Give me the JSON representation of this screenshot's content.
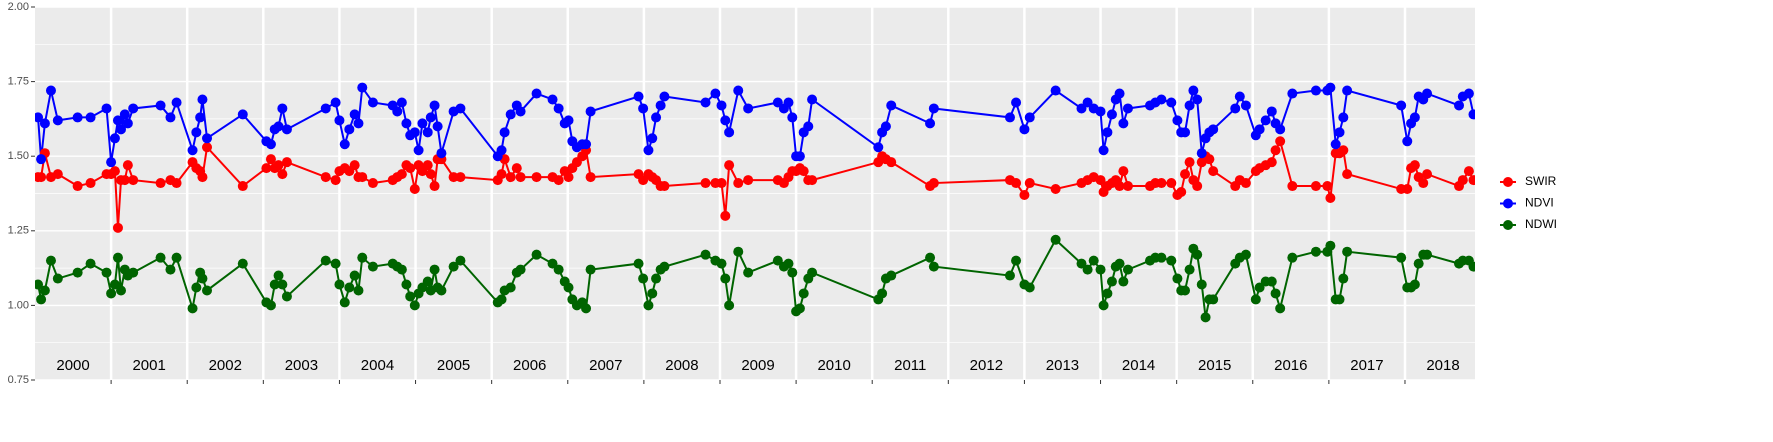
{
  "chart_data": {
    "type": "line",
    "x": [
      2000.04,
      2000.08,
      2000.13,
      2000.21,
      2000.3,
      2000.56,
      2000.73,
      2000.94,
      2001.0,
      2001.05,
      2001.09,
      2001.13,
      2001.18,
      2001.22,
      2001.29,
      2001.65,
      2001.78,
      2001.86,
      2002.07,
      2002.12,
      2002.17,
      2002.2,
      2002.26,
      2002.73,
      2003.04,
      2003.1,
      2003.15,
      2003.2,
      2003.25,
      2003.31,
      2003.82,
      2003.95,
      2004.0,
      2004.07,
      2004.13,
      2004.2,
      2004.25,
      2004.3,
      2004.44,
      2004.7,
      2004.76,
      2004.82,
      2004.88,
      2004.93,
      2004.99,
      2005.04,
      2005.09,
      2005.16,
      2005.2,
      2005.25,
      2005.29,
      2005.34,
      2005.5,
      2005.59,
      2006.08,
      2006.13,
      2006.17,
      2006.25,
      2006.33,
      2006.38,
      2006.59,
      2006.8,
      2006.88,
      2006.96,
      2007.01,
      2007.06,
      2007.12,
      2007.19,
      2007.24,
      2007.3,
      2007.93,
      2007.99,
      2008.06,
      2008.11,
      2008.16,
      2008.22,
      2008.27,
      2008.81,
      2008.94,
      2009.02,
      2009.07,
      2009.12,
      2009.24,
      2009.37,
      2009.76,
      2009.84,
      2009.9,
      2009.95,
      2010.0,
      2010.05,
      2010.1,
      2010.16,
      2010.21,
      2011.08,
      2011.13,
      2011.18,
      2011.25,
      2011.76,
      2011.81,
      2012.81,
      2012.89,
      2013.0,
      2013.07,
      2013.41,
      2013.75,
      2013.83,
      2013.91,
      2014.0,
      2014.04,
      2014.09,
      2014.15,
      2014.2,
      2014.25,
      2014.3,
      2014.36,
      2014.65,
      2014.72,
      2014.8,
      2014.93,
      2015.01,
      2015.06,
      2015.11,
      2015.17,
      2015.22,
      2015.27,
      2015.33,
      2015.38,
      2015.43,
      2015.48,
      2015.77,
      2015.83,
      2015.91,
      2016.04,
      2016.09,
      2016.17,
      2016.25,
      2016.3,
      2016.36,
      2016.52,
      2016.83,
      2016.98,
      2017.02,
      2017.09,
      2017.14,
      2017.19,
      2017.24,
      2017.95,
      2018.03,
      2018.08,
      2018.13,
      2018.18,
      2018.24,
      2018.29,
      2018.71,
      2018.76,
      2018.84,
      2018.9
    ],
    "series": [
      {
        "name": "SWIR",
        "color": "#ff0000",
        "values": [
          1.43,
          1.43,
          1.51,
          1.43,
          1.44,
          1.4,
          1.41,
          1.44,
          1.44,
          1.45,
          1.26,
          1.42,
          1.42,
          1.47,
          1.42,
          1.41,
          1.42,
          1.41,
          1.48,
          1.46,
          1.45,
          1.43,
          1.53,
          1.4,
          1.46,
          1.49,
          1.46,
          1.47,
          1.44,
          1.48,
          1.43,
          1.42,
          1.45,
          1.46,
          1.45,
          1.47,
          1.43,
          1.43,
          1.41,
          1.42,
          1.43,
          1.44,
          1.47,
          1.46,
          1.39,
          1.47,
          1.45,
          1.47,
          1.44,
          1.4,
          1.49,
          1.49,
          1.43,
          1.43,
          1.42,
          1.44,
          1.49,
          1.43,
          1.46,
          1.43,
          1.43,
          1.43,
          1.42,
          1.45,
          1.43,
          1.46,
          1.48,
          1.5,
          1.52,
          1.43,
          1.44,
          1.42,
          1.44,
          1.43,
          1.42,
          1.4,
          1.4,
          1.41,
          1.41,
          1.41,
          1.3,
          1.47,
          1.41,
          1.42,
          1.42,
          1.41,
          1.43,
          1.45,
          1.45,
          1.46,
          1.45,
          1.42,
          1.42,
          1.48,
          1.5,
          1.49,
          1.48,
          1.4,
          1.41,
          1.42,
          1.41,
          1.37,
          1.41,
          1.39,
          1.41,
          1.42,
          1.43,
          1.42,
          1.38,
          1.4,
          1.41,
          1.42,
          1.4,
          1.45,
          1.4,
          1.4,
          1.41,
          1.41,
          1.41,
          1.37,
          1.38,
          1.44,
          1.48,
          1.42,
          1.4,
          1.48,
          1.5,
          1.49,
          1.45,
          1.4,
          1.42,
          1.41,
          1.45,
          1.46,
          1.47,
          1.48,
          1.52,
          1.55,
          1.4,
          1.4,
          1.4,
          1.36,
          1.51,
          1.51,
          1.52,
          1.44,
          1.39,
          1.39,
          1.46,
          1.47,
          1.43,
          1.41,
          1.44,
          1.4,
          1.42,
          1.45,
          1.42
        ]
      },
      {
        "name": "NDVI",
        "color": "#0000ff",
        "values": [
          1.63,
          1.49,
          1.61,
          1.72,
          1.62,
          1.63,
          1.63,
          1.66,
          1.48,
          1.56,
          1.62,
          1.59,
          1.64,
          1.61,
          1.66,
          1.67,
          1.63,
          1.68,
          1.52,
          1.58,
          1.63,
          1.69,
          1.56,
          1.64,
          1.55,
          1.54,
          1.59,
          1.6,
          1.66,
          1.59,
          1.66,
          1.68,
          1.62,
          1.54,
          1.59,
          1.64,
          1.61,
          1.73,
          1.68,
          1.67,
          1.65,
          1.68,
          1.61,
          1.57,
          1.58,
          1.52,
          1.61,
          1.58,
          1.63,
          1.67,
          1.6,
          1.51,
          1.65,
          1.66,
          1.5,
          1.52,
          1.58,
          1.64,
          1.67,
          1.65,
          1.71,
          1.69,
          1.66,
          1.61,
          1.62,
          1.55,
          1.53,
          1.54,
          1.54,
          1.65,
          1.7,
          1.66,
          1.52,
          1.56,
          1.63,
          1.67,
          1.7,
          1.68,
          1.71,
          1.67,
          1.62,
          1.58,
          1.72,
          1.66,
          1.68,
          1.66,
          1.68,
          1.63,
          1.5,
          1.5,
          1.58,
          1.6,
          1.69,
          1.53,
          1.58,
          1.6,
          1.67,
          1.61,
          1.66,
          1.63,
          1.68,
          1.59,
          1.63,
          1.72,
          1.66,
          1.68,
          1.66,
          1.65,
          1.52,
          1.58,
          1.64,
          1.69,
          1.71,
          1.61,
          1.66,
          1.67,
          1.68,
          1.69,
          1.68,
          1.62,
          1.58,
          1.58,
          1.67,
          1.72,
          1.69,
          1.51,
          1.56,
          1.58,
          1.59,
          1.66,
          1.7,
          1.67,
          1.57,
          1.59,
          1.62,
          1.65,
          1.61,
          1.59,
          1.71,
          1.72,
          1.72,
          1.73,
          1.54,
          1.58,
          1.63,
          1.72,
          1.67,
          1.55,
          1.61,
          1.63,
          1.7,
          1.69,
          1.71,
          1.67,
          1.7,
          1.71,
          1.64
        ]
      },
      {
        "name": "NDWI",
        "color": "#006400",
        "values": [
          1.07,
          1.02,
          1.05,
          1.15,
          1.09,
          1.11,
          1.14,
          1.11,
          1.04,
          1.07,
          1.16,
          1.05,
          1.12,
          1.1,
          1.11,
          1.16,
          1.12,
          1.16,
          0.99,
          1.06,
          1.11,
          1.09,
          1.05,
          1.14,
          1.01,
          1.0,
          1.07,
          1.1,
          1.07,
          1.03,
          1.15,
          1.14,
          1.07,
          1.01,
          1.06,
          1.1,
          1.05,
          1.16,
          1.13,
          1.14,
          1.13,
          1.12,
          1.07,
          1.03,
          1.0,
          1.04,
          1.06,
          1.08,
          1.05,
          1.12,
          1.06,
          1.05,
          1.13,
          1.15,
          1.01,
          1.02,
          1.05,
          1.06,
          1.11,
          1.12,
          1.17,
          1.14,
          1.12,
          1.08,
          1.06,
          1.02,
          1.0,
          1.01,
          0.99,
          1.12,
          1.14,
          1.09,
          1.0,
          1.04,
          1.09,
          1.12,
          1.13,
          1.17,
          1.15,
          1.14,
          1.09,
          1.0,
          1.18,
          1.11,
          1.15,
          1.13,
          1.14,
          1.11,
          0.98,
          0.99,
          1.04,
          1.09,
          1.11,
          1.02,
          1.04,
          1.09,
          1.1,
          1.16,
          1.13,
          1.1,
          1.15,
          1.07,
          1.06,
          1.22,
          1.14,
          1.12,
          1.15,
          1.12,
          1.0,
          1.04,
          1.08,
          1.13,
          1.14,
          1.08,
          1.12,
          1.15,
          1.16,
          1.16,
          1.15,
          1.09,
          1.05,
          1.05,
          1.12,
          1.19,
          1.17,
          1.07,
          0.96,
          1.02,
          1.02,
          1.14,
          1.16,
          1.17,
          1.02,
          1.06,
          1.08,
          1.08,
          1.04,
          0.99,
          1.16,
          1.18,
          1.18,
          1.2,
          1.02,
          1.02,
          1.09,
          1.18,
          1.16,
          1.06,
          1.06,
          1.07,
          1.14,
          1.17,
          1.17,
          1.14,
          1.15,
          1.15,
          1.13
        ]
      }
    ],
    "xlim": [
      2000,
      2018.92
    ],
    "xgrid": [
      2001,
      2002,
      2003,
      2004,
      2005,
      2006,
      2007,
      2008,
      2009,
      2010,
      2011,
      2012,
      2013,
      2014,
      2015,
      2016,
      2017,
      2018
    ],
    "xticks": [
      {
        "value": 2000.5,
        "label": "2000"
      },
      {
        "value": 2001.5,
        "label": "2001"
      },
      {
        "value": 2002.5,
        "label": "2002"
      },
      {
        "value": 2003.5,
        "label": "2003"
      },
      {
        "value": 2004.5,
        "label": "2004"
      },
      {
        "value": 2005.5,
        "label": "2005"
      },
      {
        "value": 2006.5,
        "label": "2006"
      },
      {
        "value": 2007.5,
        "label": "2007"
      },
      {
        "value": 2008.5,
        "label": "2008"
      },
      {
        "value": 2009.5,
        "label": "2009"
      },
      {
        "value": 2010.5,
        "label": "2010"
      },
      {
        "value": 2011.5,
        "label": "2011"
      },
      {
        "value": 2012.5,
        "label": "2012"
      },
      {
        "value": 2013.5,
        "label": "2013"
      },
      {
        "value": 2014.5,
        "label": "2014"
      },
      {
        "value": 2015.5,
        "label": "2015"
      },
      {
        "value": 2016.5,
        "label": "2016"
      },
      {
        "value": 2017.5,
        "label": "2017"
      },
      {
        "value": 2018.5,
        "label": "2018"
      }
    ],
    "ylim": [
      0.75,
      2.0
    ],
    "yticks": [
      {
        "value": 0.75,
        "label": "0.75"
      },
      {
        "value": 1.0,
        "label": "1.00"
      },
      {
        "value": 1.25,
        "label": "1.25"
      },
      {
        "value": 1.5,
        "label": "1.50"
      },
      {
        "value": 1.75,
        "label": "1.75"
      },
      {
        "value": 2.0,
        "label": "2.00"
      }
    ],
    "yminor": [
      0.875,
      1.125,
      1.375,
      1.625,
      1.875
    ],
    "grid": true,
    "legend": "right"
  }
}
